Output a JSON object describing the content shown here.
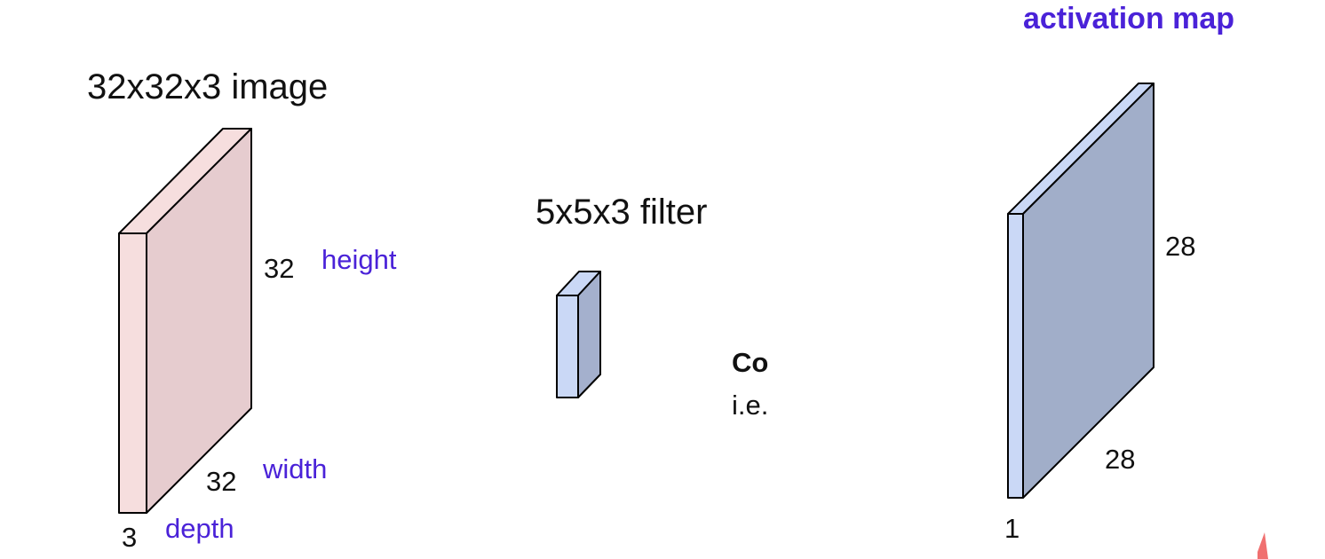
{
  "colors": {
    "image_front": "#f6dede",
    "image_side": "#e6cccf",
    "filter_front": "#cad8f6",
    "filter_side": "#a4b0cd",
    "activation_front": "#cad8f6",
    "activation_side": "#a1aec9",
    "outline": "#000000",
    "label_purple": "#4a22d8",
    "text": "#111111",
    "corner_mark": "#f07070"
  },
  "image_volume": {
    "title": "32x32x3 image",
    "height_value": "32",
    "height_label": "height",
    "width_value": "32",
    "width_label": "width",
    "depth_value": "3",
    "depth_label": "depth"
  },
  "filter_volume": {
    "title": "5x5x3 filter"
  },
  "convolve_text": {
    "line1": "Co",
    "line2": "i.e."
  },
  "activation_map": {
    "title": "activation map",
    "height_value": "28",
    "width_value": "28",
    "depth_value": "1"
  }
}
